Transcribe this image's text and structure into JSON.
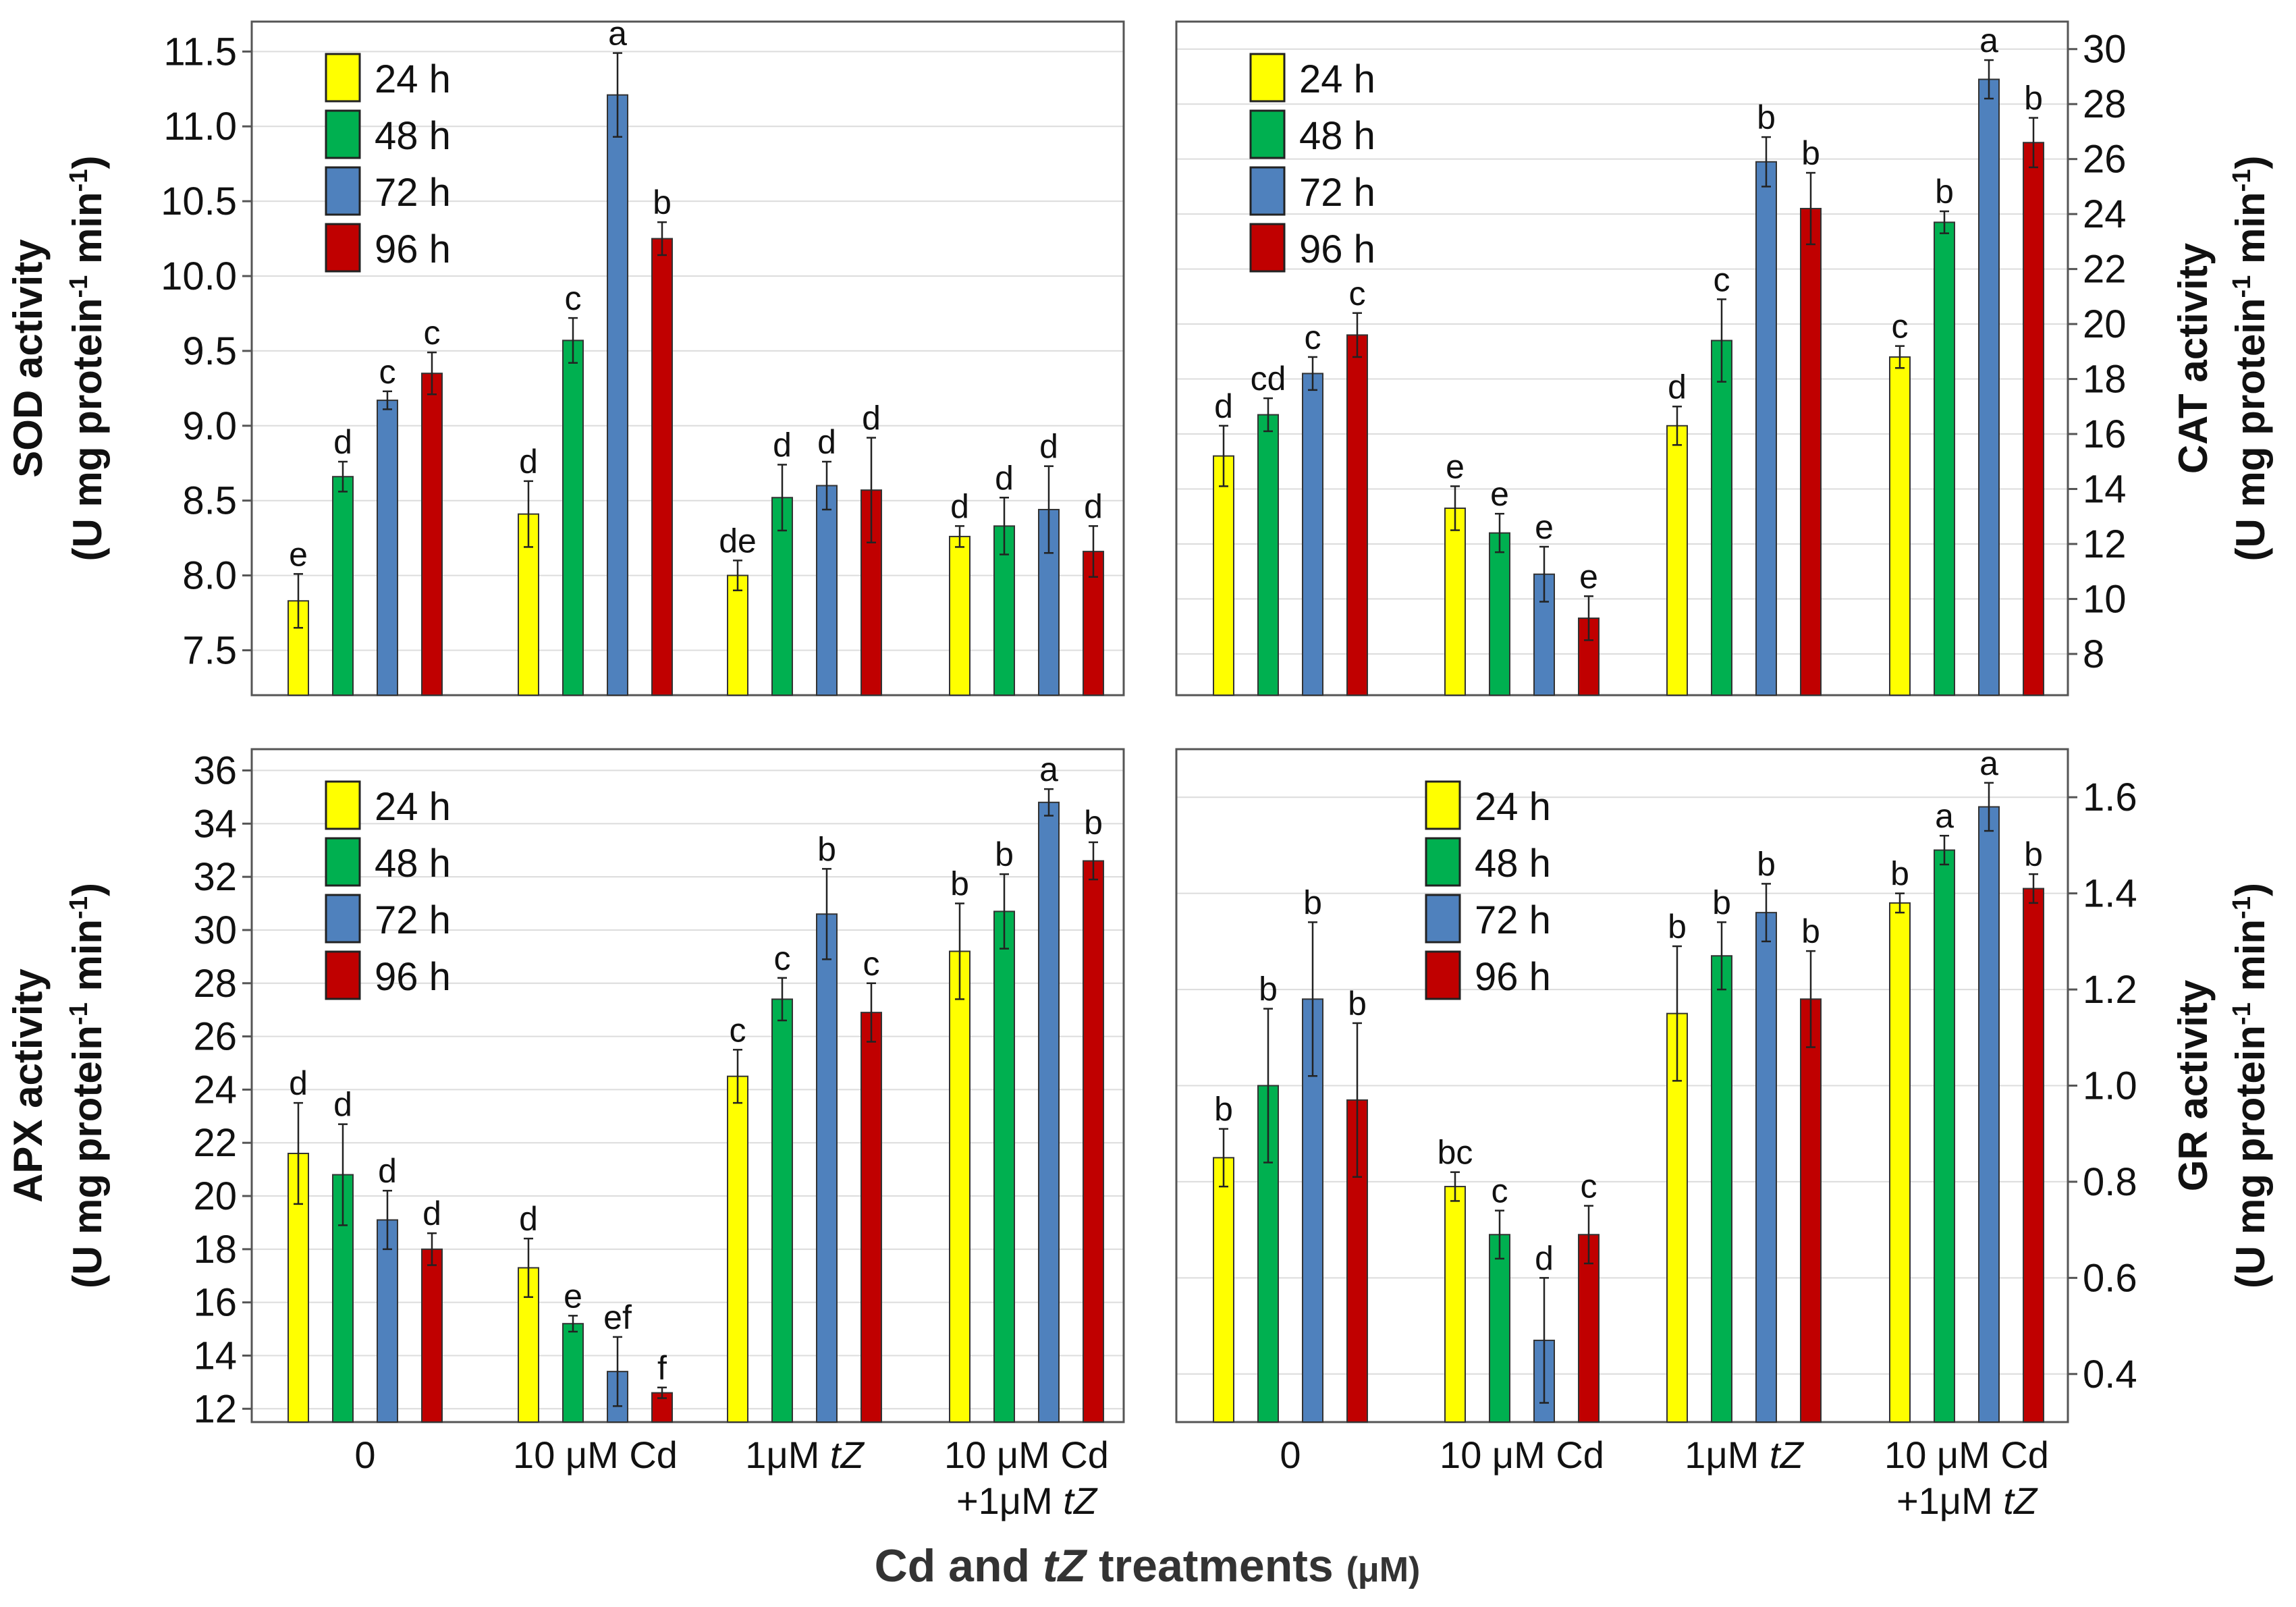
{
  "colors": {
    "24 h": "#FFFF00",
    "48 h": "#00B050",
    "72 h": "#4F81BD",
    "96 h": "#C00000"
  },
  "xlabel": {
    "pre": "Cd and ",
    "italic": "tZ",
    "post": " treatments ",
    "unit": "(μM)"
  },
  "chart_data": [
    {
      "type": "bar",
      "panel": "top-left",
      "yaxis_side": "left",
      "ylabel_line1": "SOD activity",
      "ylabel_line2": "(U mg protein",
      "ylabel_sup": "-1",
      "ylabel_mid": " min",
      "ylabel_sup2": "-1",
      "ylabel_end": ")",
      "ylim": [
        7.2,
        11.7
      ],
      "yticks": [
        7.5,
        8.0,
        8.5,
        9.0,
        9.5,
        10.0,
        10.5,
        11.0,
        11.5
      ],
      "tick_decimals": 1,
      "series_names": [
        "24 h",
        "48 h",
        "72 h",
        "96 h"
      ],
      "groups": [
        {
          "values": [
            7.83,
            8.66,
            9.17,
            9.35
          ],
          "errors": [
            0.18,
            0.1,
            0.06,
            0.14
          ],
          "letters": [
            "e",
            "d",
            "c",
            "c"
          ]
        },
        {
          "values": [
            8.41,
            9.57,
            11.21,
            10.25
          ],
          "errors": [
            0.22,
            0.15,
            0.28,
            0.11
          ],
          "letters": [
            "d",
            "c",
            "a",
            "b"
          ]
        },
        {
          "values": [
            8.0,
            8.52,
            8.6,
            8.57
          ],
          "errors": [
            0.1,
            0.22,
            0.16,
            0.35
          ],
          "letters": [
            "de",
            "d",
            "d",
            "d"
          ]
        },
        {
          "values": [
            8.26,
            8.33,
            8.44,
            8.16
          ],
          "errors": [
            0.07,
            0.19,
            0.29,
            0.17
          ],
          "letters": [
            "d",
            "d",
            "d",
            "d"
          ]
        }
      ],
      "legend": "top-left",
      "letter_size": "large"
    },
    {
      "type": "bar",
      "panel": "top-right",
      "yaxis_side": "right",
      "ylabel_line1": "CAT activity",
      "ylabel_line2": "(U mg protein",
      "ylabel_sup": "-1",
      "ylabel_mid": " min",
      "ylabel_sup2": "-1",
      "ylabel_end": ")",
      "ylim": [
        6.5,
        31
      ],
      "yticks": [
        8,
        10,
        12,
        14,
        16,
        18,
        20,
        22,
        24,
        26,
        28,
        30
      ],
      "tick_decimals": 0,
      "series_names": [
        "24 h",
        "48 h",
        "72 h",
        "96 h"
      ],
      "groups": [
        {
          "values": [
            15.2,
            16.7,
            18.2,
            19.6
          ],
          "errors": [
            1.1,
            0.6,
            0.6,
            0.8
          ],
          "letters": [
            "d",
            "cd",
            "c",
            "c"
          ]
        },
        {
          "values": [
            13.3,
            12.4,
            10.9,
            9.3
          ],
          "errors": [
            0.8,
            0.7,
            1.0,
            0.8
          ],
          "letters": [
            "e",
            "e",
            "e",
            "e"
          ]
        },
        {
          "values": [
            16.3,
            19.4,
            25.9,
            24.2
          ],
          "errors": [
            0.7,
            1.5,
            0.9,
            1.3
          ],
          "letters": [
            "d",
            "c",
            "b",
            "b"
          ]
        },
        {
          "values": [
            18.8,
            23.7,
            28.9,
            26.6
          ],
          "errors": [
            0.4,
            0.4,
            0.7,
            0.9
          ],
          "letters": [
            "c",
            "b",
            "a",
            "b"
          ]
        }
      ],
      "legend": "top-left",
      "letter_size": "large"
    },
    {
      "type": "bar",
      "panel": "bottom-left",
      "yaxis_side": "left",
      "ylabel_line1": "APX activity",
      "ylabel_line2": "(U mg protein",
      "ylabel_sup": "-1",
      "ylabel_mid": " min",
      "ylabel_sup2": "-1",
      "ylabel_end": ")",
      "ylim": [
        11.5,
        36.8
      ],
      "yticks": [
        12,
        14,
        16,
        18,
        20,
        22,
        24,
        26,
        28,
        30,
        32,
        34,
        36
      ],
      "tick_decimals": 0,
      "series_names": [
        "24 h",
        "48 h",
        "72 h",
        "96 h"
      ],
      "groups": [
        {
          "values": [
            21.6,
            20.8,
            19.1,
            18.0
          ],
          "errors": [
            1.9,
            1.9,
            1.1,
            0.6
          ],
          "letters": [
            "d",
            "d",
            "d",
            "d"
          ]
        },
        {
          "values": [
            17.3,
            15.2,
            13.4,
            12.6
          ],
          "errors": [
            1.1,
            0.3,
            1.3,
            0.2
          ],
          "letters": [
            "d",
            "e",
            "ef",
            "f"
          ]
        },
        {
          "values": [
            24.5,
            27.4,
            30.6,
            26.9
          ],
          "errors": [
            1.0,
            0.8,
            1.7,
            1.1
          ],
          "letters": [
            "c",
            "c",
            "b",
            "c"
          ]
        },
        {
          "values": [
            29.2,
            30.7,
            34.8,
            32.6
          ],
          "errors": [
            1.8,
            1.4,
            0.5,
            0.7
          ],
          "letters": [
            "b",
            "b",
            "a",
            "b"
          ]
        }
      ],
      "legend": "top-left",
      "letter_size": "small"
    },
    {
      "type": "bar",
      "panel": "bottom-right",
      "yaxis_side": "right",
      "ylabel_line1": "GR activity",
      "ylabel_line2": "(U mg protein",
      "ylabel_sup": "-1",
      "ylabel_mid": " min",
      "ylabel_sup2": "-1",
      "ylabel_end": ")",
      "ylim": [
        0.3,
        1.7
      ],
      "yticks": [
        0.4,
        0.6,
        0.8,
        1.0,
        1.2,
        1.4,
        1.6
      ],
      "tick_decimals": 1,
      "series_names": [
        "24 h",
        "48 h",
        "72 h",
        "96 h"
      ],
      "groups": [
        {
          "values": [
            0.85,
            1.0,
            1.18,
            0.97
          ],
          "errors": [
            0.06,
            0.16,
            0.16,
            0.16
          ],
          "letters": [
            "b",
            "b",
            "b",
            "b"
          ]
        },
        {
          "values": [
            0.79,
            0.69,
            0.47,
            0.69
          ],
          "errors": [
            0.03,
            0.05,
            0.13,
            0.06
          ],
          "letters": [
            "bc",
            "c",
            "d",
            "c"
          ]
        },
        {
          "values": [
            1.15,
            1.27,
            1.36,
            1.18
          ],
          "errors": [
            0.14,
            0.07,
            0.06,
            0.1
          ],
          "letters": [
            "b",
            "b",
            "b",
            "b"
          ]
        },
        {
          "values": [
            1.38,
            1.49,
            1.58,
            1.41
          ],
          "errors": [
            0.02,
            0.03,
            0.05,
            0.03
          ],
          "letters": [
            "b",
            "a",
            "a",
            "b"
          ]
        }
      ],
      "legend": "top-center",
      "letter_size": "small"
    }
  ],
  "categories": [
    {
      "line1": "0"
    },
    {
      "line1": "10 μM Cd"
    },
    {
      "line1_pre": "1μM ",
      "line1_italic": "tZ"
    },
    {
      "line1": "10 μM Cd",
      "line2_pre": "+1μM ",
      "line2_italic": "tZ"
    }
  ]
}
